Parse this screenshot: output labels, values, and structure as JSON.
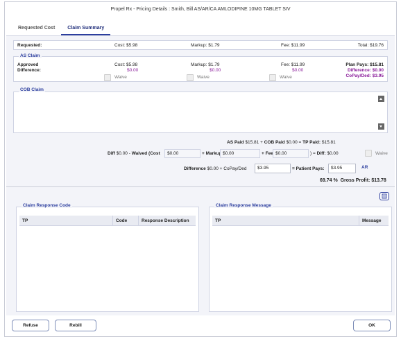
{
  "window": {
    "title": "Propel Rx - Pricing Details : Smith, Bill AS/AR/CA  AMLODIPINE 10MG    TABLET SIV"
  },
  "tabs": [
    {
      "label": "Requested Cost",
      "active": false
    },
    {
      "label": "Claim Summary",
      "active": true
    }
  ],
  "requested": {
    "label": "Requested:",
    "cost": "Cost: $5.98",
    "markup": "Markup: $1.79",
    "fee": "Fee: $11.99",
    "total": "Total: $19.76"
  },
  "as_claim": {
    "title": "AS Claim",
    "approved_label": "Approved",
    "difference_label": "Difference:",
    "cost": "Cost: $5.98",
    "cost_diff": "$0.00",
    "markup": "Markup: $1.79",
    "markup_diff": "$0.00",
    "fee": "Fee: $11.99",
    "fee_diff": "$0.00",
    "plan_pays": "Plan Pays: $15.81",
    "difference": "Difference: $0.00",
    "copay": "CoPay/Ded: $3.95",
    "waive_label": "Waive"
  },
  "cob_claim": {
    "title": "COB Claim"
  },
  "totals": {
    "as_paid_label": "AS",
    "as_paid_b": "Paid",
    "as_paid_value": "$15.81 +",
    "cob_paid_label": "COB Paid",
    "cob_paid_value": "$0.00 =",
    "tp_paid_label": "TP Paid:",
    "tp_paid_value": "$15.81"
  },
  "diff_row": {
    "diff_prefix": "Diff",
    "diff_value": "$0.00 - ",
    "waived_label": "Waived (Cost",
    "cost_value": "$0.00",
    "markup_label": "+ Markup",
    "markup_value": "$0.00",
    "fee_label": "+ Fee",
    "fee_value": "$0.00",
    "close_label": ") = ",
    "diff_label": "Diff:",
    "diff_result": "$0.00",
    "waive_label": "Waive"
  },
  "patient_row": {
    "difference_label": "Difference",
    "difference_value": "$0.00 + CoPay/Ded",
    "copay_value": "$3.95",
    "pays_label": "= Patient Pays:",
    "pays_value": "$3.95",
    "ar_link": "AR"
  },
  "profit": {
    "percent": "69.74 %",
    "label": "Gross Profit:",
    "value": "$13.78"
  },
  "response_code": {
    "title": "Claim Response Code",
    "columns": [
      "TP",
      "Code",
      "Response Description"
    ]
  },
  "response_message": {
    "title": "Claim Response Message",
    "columns": [
      "TP",
      "Message"
    ]
  },
  "buttons": {
    "refuse": "Refuse",
    "rebill": "Rebill",
    "ok": "OK"
  }
}
